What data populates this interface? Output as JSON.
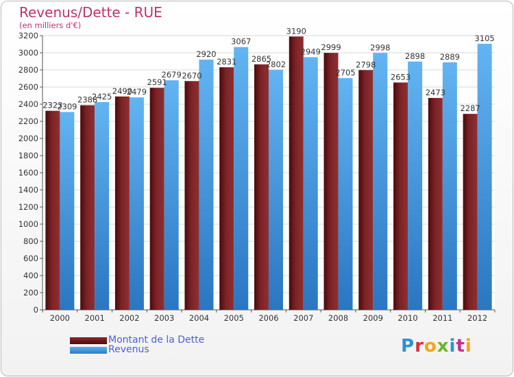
{
  "header": {
    "title": "Revenus/Dette - RUE",
    "subtitle": "(en milliers d'€)"
  },
  "legend": {
    "items": [
      {
        "label": "Montant de la Dette",
        "color": "#6e1a1c"
      },
      {
        "label": "Revenus",
        "color": "#3d8fdc"
      }
    ]
  },
  "brand": {
    "logo_text": "Proxiti",
    "letter_colors": [
      "#2f8fd8",
      "#d6313d",
      "#f4a41a",
      "#6bb42b",
      "#2f8fd8",
      "#c72f8e",
      "#f4a41a"
    ]
  },
  "chart_data": {
    "type": "bar",
    "categories": [
      "2000",
      "2001",
      "2002",
      "2003",
      "2004",
      "2005",
      "2006",
      "2007",
      "2008",
      "2009",
      "2010",
      "2011",
      "2012"
    ],
    "series": [
      {
        "name": "Montant de la Dette",
        "values": [
          2323,
          2388,
          2490,
          2591,
          2670,
          2831,
          2865,
          3190,
          2999,
          2798,
          2653,
          2473,
          2287
        ],
        "labels": [
          "2323",
          "2388",
          "2490",
          "2591",
          "2670",
          "2831",
          "2865",
          "3190",
          "2999",
          "2798",
          "2653",
          "2473",
          "2287"
        ]
      },
      {
        "name": "Revenus",
        "values": [
          2309,
          2425,
          2479,
          2679,
          2920,
          3067,
          2802,
          2949,
          2705,
          2998,
          2898,
          2889,
          3105
        ],
        "labels": [
          "2309",
          "2425",
          "2479",
          "2679",
          "2920",
          "3067",
          "2802",
          "2949",
          "2705",
          "2998",
          "2898",
          "2889",
          "3105"
        ]
      }
    ],
    "ylim": [
      0,
      3200
    ],
    "yticks": [
      0,
      200,
      400,
      600,
      800,
      1000,
      1200,
      1400,
      1600,
      1800,
      2000,
      2200,
      2400,
      2600,
      2800,
      3000,
      3200
    ],
    "grid": true,
    "legend_position": "bottom-left"
  }
}
